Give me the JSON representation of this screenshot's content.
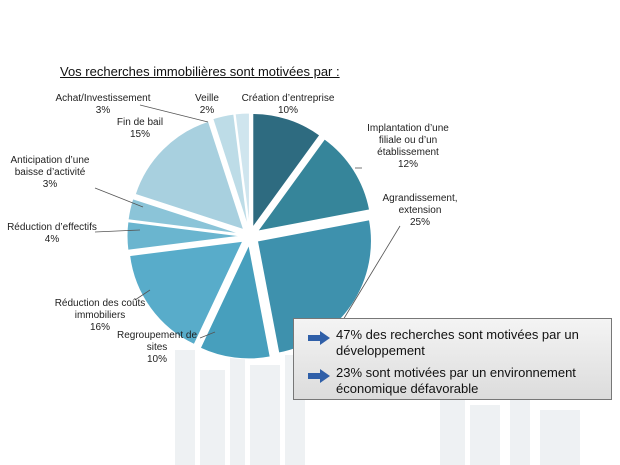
{
  "chart_data": {
    "type": "pie",
    "title": "Vos recherches immobilières sont motivées par :",
    "categories": [
      "Création d’entreprise",
      "Implantation d’une filiale ou d’un établissement",
      "Agrandissement, extension",
      "Regroupement de sites",
      "Réduction des coûts immobiliers",
      "Réduction d’effectifs",
      "Anticipation d’une baisse d’activité",
      "Fin de bail",
      "Achat/Investissement",
      "Veille"
    ],
    "values": [
      10,
      12,
      25,
      10,
      16,
      4,
      3,
      15,
      3,
      2
    ],
    "value_labels": [
      "10%",
      "12%",
      "25%",
      "10%",
      "16%",
      "4%",
      "3%",
      "15%",
      "3%",
      "2%"
    ],
    "colors": [
      "#2e6b80",
      "#36859a",
      "#3e91ad",
      "#479fbd",
      "#58acca",
      "#6ab5cf",
      "#8bc4d8",
      "#a8d0df",
      "#bddce7",
      "#cfe5ee"
    ],
    "annotations": [
      "47% des recherches sont motivées par un développement",
      "23% sont motivées par un environnement économique défavorable"
    ]
  }
}
